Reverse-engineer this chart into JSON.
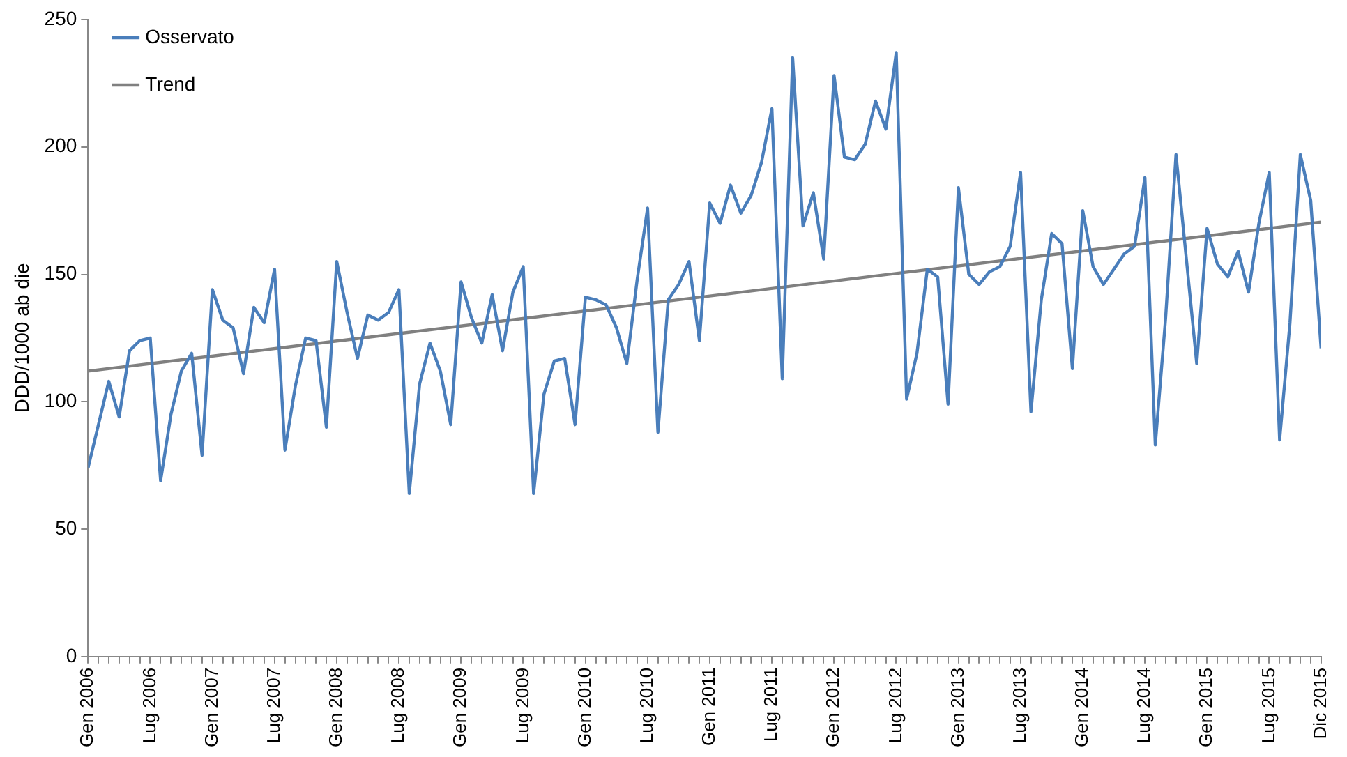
{
  "chart_data": {
    "type": "line",
    "ylabel": "DDD/1000 ab die",
    "categories": [
      "Gen 2006",
      null,
      null,
      null,
      null,
      null,
      "Lug 2006",
      null,
      null,
      null,
      null,
      null,
      "Gen 2007",
      null,
      null,
      null,
      null,
      null,
      "Lug 2007",
      null,
      null,
      null,
      null,
      null,
      "Gen 2008",
      null,
      null,
      null,
      null,
      null,
      "Lug 2008",
      null,
      null,
      null,
      null,
      null,
      "Gen 2009",
      null,
      null,
      null,
      null,
      null,
      "Lug 2009",
      null,
      null,
      null,
      null,
      null,
      "Gen 2010",
      null,
      null,
      null,
      null,
      null,
      "Lug 2010",
      null,
      null,
      null,
      null,
      null,
      "Gen 2011",
      null,
      null,
      null,
      null,
      null,
      "Lug 2011",
      null,
      null,
      null,
      null,
      null,
      "Gen 2012",
      null,
      null,
      null,
      null,
      null,
      "Lug 2012",
      null,
      null,
      null,
      null,
      null,
      "Gen 2013",
      null,
      null,
      null,
      null,
      null,
      "Lug 2013",
      null,
      null,
      null,
      null,
      null,
      "Gen 2014",
      null,
      null,
      null,
      null,
      null,
      "Lug 2014",
      null,
      null,
      null,
      null,
      null,
      "Gen 2015",
      null,
      null,
      null,
      null,
      null,
      "Lug 2015",
      null,
      null,
      null,
      null,
      "Dic 2015"
    ],
    "series": [
      {
        "name": "Osservato",
        "color": "#4a7ebb",
        "values": [
          74,
          91,
          108,
          94,
          120,
          124,
          125,
          69,
          95,
          112,
          119,
          79,
          144,
          132,
          129,
          111,
          137,
          131,
          152,
          81,
          106,
          125,
          124,
          90,
          155,
          135,
          117,
          134,
          132,
          135,
          144,
          64,
          107,
          123,
          112,
          91,
          147,
          133,
          123,
          142,
          120,
          143,
          153,
          64,
          103,
          116,
          117,
          91,
          141,
          140,
          138,
          129,
          115,
          148,
          176,
          88,
          140,
          146,
          155,
          124,
          178,
          170,
          185,
          174,
          181,
          194,
          215,
          109,
          235,
          169,
          182,
          156,
          228,
          196,
          195,
          201,
          218,
          207,
          237,
          101,
          119,
          152,
          149,
          99,
          184,
          150,
          146,
          151,
          153,
          161,
          190,
          96,
          140,
          166,
          162,
          113,
          175,
          153,
          146,
          152,
          158,
          161,
          188,
          83,
          133,
          197,
          156,
          115,
          168,
          154,
          149,
          159,
          143,
          170,
          190,
          85,
          131,
          197,
          179,
          121
        ]
      },
      {
        "name": "Trend",
        "color": "#808080",
        "x": [
          "Gen 2006",
          "Dic 2015"
        ],
        "values": [
          112,
          170.5
        ]
      }
    ],
    "ylim": [
      0,
      250
    ],
    "yticks": [
      0,
      50,
      100,
      150,
      200,
      250
    ],
    "grid": false,
    "legend": "top left",
    "marker": "none",
    "line_style": "solid"
  }
}
